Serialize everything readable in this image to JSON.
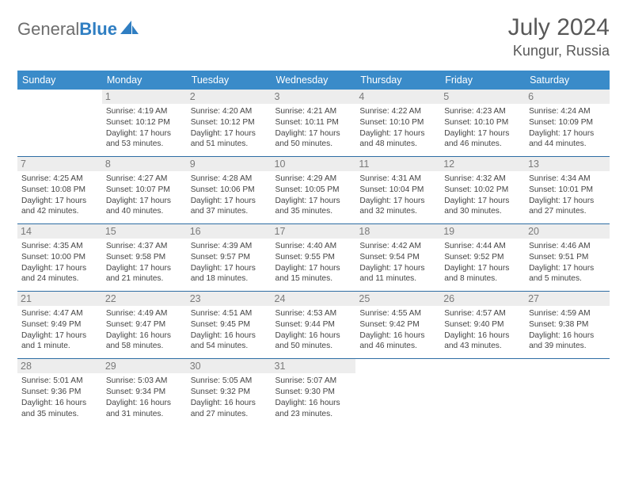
{
  "logo": {
    "word1": "General",
    "word2": "Blue"
  },
  "title": "July 2024",
  "subtitle": "Kungur, Russia",
  "colors": {
    "header_bg": "#3a8bc9",
    "header_text": "#ffffff",
    "row_divider": "#2e6da4",
    "daynum_bg": "#ededed",
    "daynum_text": "#7a7a7a",
    "body_text": "#444444",
    "title_text": "#585858",
    "logo_gray": "#6d6d6d",
    "logo_blue": "#2f7ec2"
  },
  "columns": [
    "Sunday",
    "Monday",
    "Tuesday",
    "Wednesday",
    "Thursday",
    "Friday",
    "Saturday"
  ],
  "weeks": [
    [
      null,
      {
        "n": "1",
        "sr": "4:19 AM",
        "ss": "10:12 PM",
        "dl": "17 hours and 53 minutes."
      },
      {
        "n": "2",
        "sr": "4:20 AM",
        "ss": "10:12 PM",
        "dl": "17 hours and 51 minutes."
      },
      {
        "n": "3",
        "sr": "4:21 AM",
        "ss": "10:11 PM",
        "dl": "17 hours and 50 minutes."
      },
      {
        "n": "4",
        "sr": "4:22 AM",
        "ss": "10:10 PM",
        "dl": "17 hours and 48 minutes."
      },
      {
        "n": "5",
        "sr": "4:23 AM",
        "ss": "10:10 PM",
        "dl": "17 hours and 46 minutes."
      },
      {
        "n": "6",
        "sr": "4:24 AM",
        "ss": "10:09 PM",
        "dl": "17 hours and 44 minutes."
      }
    ],
    [
      {
        "n": "7",
        "sr": "4:25 AM",
        "ss": "10:08 PM",
        "dl": "17 hours and 42 minutes."
      },
      {
        "n": "8",
        "sr": "4:27 AM",
        "ss": "10:07 PM",
        "dl": "17 hours and 40 minutes."
      },
      {
        "n": "9",
        "sr": "4:28 AM",
        "ss": "10:06 PM",
        "dl": "17 hours and 37 minutes."
      },
      {
        "n": "10",
        "sr": "4:29 AM",
        "ss": "10:05 PM",
        "dl": "17 hours and 35 minutes."
      },
      {
        "n": "11",
        "sr": "4:31 AM",
        "ss": "10:04 PM",
        "dl": "17 hours and 32 minutes."
      },
      {
        "n": "12",
        "sr": "4:32 AM",
        "ss": "10:02 PM",
        "dl": "17 hours and 30 minutes."
      },
      {
        "n": "13",
        "sr": "4:34 AM",
        "ss": "10:01 PM",
        "dl": "17 hours and 27 minutes."
      }
    ],
    [
      {
        "n": "14",
        "sr": "4:35 AM",
        "ss": "10:00 PM",
        "dl": "17 hours and 24 minutes."
      },
      {
        "n": "15",
        "sr": "4:37 AM",
        "ss": "9:58 PM",
        "dl": "17 hours and 21 minutes."
      },
      {
        "n": "16",
        "sr": "4:39 AM",
        "ss": "9:57 PM",
        "dl": "17 hours and 18 minutes."
      },
      {
        "n": "17",
        "sr": "4:40 AM",
        "ss": "9:55 PM",
        "dl": "17 hours and 15 minutes."
      },
      {
        "n": "18",
        "sr": "4:42 AM",
        "ss": "9:54 PM",
        "dl": "17 hours and 11 minutes."
      },
      {
        "n": "19",
        "sr": "4:44 AM",
        "ss": "9:52 PM",
        "dl": "17 hours and 8 minutes."
      },
      {
        "n": "20",
        "sr": "4:46 AM",
        "ss": "9:51 PM",
        "dl": "17 hours and 5 minutes."
      }
    ],
    [
      {
        "n": "21",
        "sr": "4:47 AM",
        "ss": "9:49 PM",
        "dl": "17 hours and 1 minute."
      },
      {
        "n": "22",
        "sr": "4:49 AM",
        "ss": "9:47 PM",
        "dl": "16 hours and 58 minutes."
      },
      {
        "n": "23",
        "sr": "4:51 AM",
        "ss": "9:45 PM",
        "dl": "16 hours and 54 minutes."
      },
      {
        "n": "24",
        "sr": "4:53 AM",
        "ss": "9:44 PM",
        "dl": "16 hours and 50 minutes."
      },
      {
        "n": "25",
        "sr": "4:55 AM",
        "ss": "9:42 PM",
        "dl": "16 hours and 46 minutes."
      },
      {
        "n": "26",
        "sr": "4:57 AM",
        "ss": "9:40 PM",
        "dl": "16 hours and 43 minutes."
      },
      {
        "n": "27",
        "sr": "4:59 AM",
        "ss": "9:38 PM",
        "dl": "16 hours and 39 minutes."
      }
    ],
    [
      {
        "n": "28",
        "sr": "5:01 AM",
        "ss": "9:36 PM",
        "dl": "16 hours and 35 minutes."
      },
      {
        "n": "29",
        "sr": "5:03 AM",
        "ss": "9:34 PM",
        "dl": "16 hours and 31 minutes."
      },
      {
        "n": "30",
        "sr": "5:05 AM",
        "ss": "9:32 PM",
        "dl": "16 hours and 27 minutes."
      },
      {
        "n": "31",
        "sr": "5:07 AM",
        "ss": "9:30 PM",
        "dl": "16 hours and 23 minutes."
      },
      null,
      null,
      null
    ]
  ],
  "labels": {
    "sunrise": "Sunrise: ",
    "sunset": "Sunset: ",
    "daylight": "Daylight: "
  }
}
